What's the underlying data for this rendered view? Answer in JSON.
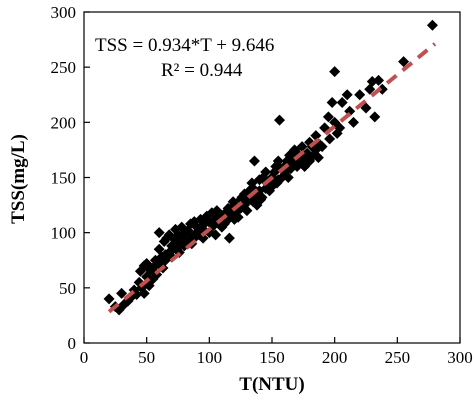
{
  "chart_data": {
    "type": "scatter",
    "xlabel": "T(NTU)",
    "ylabel": "TSS(mg/L)",
    "xlim": [
      0,
      300
    ],
    "ylim": [
      0,
      300
    ],
    "xticks": [
      "0",
      "50",
      "100",
      "150",
      "200",
      "250",
      "300"
    ],
    "yticks": [
      "0",
      "50",
      "100",
      "150",
      "200",
      "250",
      "300"
    ],
    "grid": false,
    "legend": "none",
    "annotations": {
      "equation": "TSS = 0.934*T + 9.646",
      "r_squared": "R² = 0.944"
    },
    "fit_line": {
      "slope": 0.934,
      "intercept": 9.646,
      "x_range": [
        20,
        280
      ],
      "style": "dashed",
      "color": "#c0504d"
    },
    "marker": {
      "shape": "diamond",
      "color": "#000000"
    },
    "series": [
      {
        "points": [
          [
            20,
            40
          ],
          [
            25,
            33
          ],
          [
            28,
            30
          ],
          [
            30,
            45
          ],
          [
            32,
            35
          ],
          [
            35,
            38
          ],
          [
            38,
            42
          ],
          [
            40,
            48
          ],
          [
            42,
            44
          ],
          [
            44,
            55
          ],
          [
            45,
            65
          ],
          [
            46,
            50
          ],
          [
            48,
            70
          ],
          [
            48,
            45
          ],
          [
            50,
            60
          ],
          [
            50,
            72
          ],
          [
            52,
            52
          ],
          [
            53,
            66
          ],
          [
            55,
            68
          ],
          [
            55,
            58
          ],
          [
            57,
            75
          ],
          [
            58,
            62
          ],
          [
            60,
            72
          ],
          [
            60,
            85
          ],
          [
            60,
            100
          ],
          [
            62,
            78
          ],
          [
            63,
            68
          ],
          [
            64,
            92
          ],
          [
            65,
            80
          ],
          [
            65,
            75
          ],
          [
            66,
            95
          ],
          [
            68,
            82
          ],
          [
            68,
            98
          ],
          [
            70,
            88
          ],
          [
            70,
            78
          ],
          [
            72,
            94
          ],
          [
            73,
            103
          ],
          [
            74,
            85
          ],
          [
            75,
            98
          ],
          [
            75,
            90
          ],
          [
            76,
            82
          ],
          [
            78,
            105
          ],
          [
            78,
            95
          ],
          [
            80,
            100
          ],
          [
            80,
            88
          ],
          [
            82,
            92
          ],
          [
            83,
            102
          ],
          [
            85,
            96
          ],
          [
            85,
            108
          ],
          [
            86,
            90
          ],
          [
            88,
            95
          ],
          [
            88,
            110
          ],
          [
            90,
            100
          ],
          [
            90,
            105
          ],
          [
            92,
            98
          ],
          [
            93,
            112
          ],
          [
            95,
            103
          ],
          [
            95,
            95
          ],
          [
            96,
            108
          ],
          [
            98,
            115
          ],
          [
            100,
            100
          ],
          [
            100,
            110
          ],
          [
            102,
            118
          ],
          [
            103,
            106
          ],
          [
            105,
            112
          ],
          [
            105,
            98
          ],
          [
            106,
            120
          ],
          [
            108,
            110
          ],
          [
            110,
            115
          ],
          [
            110,
            105
          ],
          [
            112,
            108
          ],
          [
            113,
            118
          ],
          [
            115,
            122
          ],
          [
            115,
            112
          ],
          [
            116,
            95
          ],
          [
            118,
            118
          ],
          [
            119,
            128
          ],
          [
            120,
            112
          ],
          [
            120,
            125
          ],
          [
            122,
            120
          ],
          [
            123,
            114
          ],
          [
            125,
            130
          ],
          [
            125,
            122
          ],
          [
            126,
            132
          ],
          [
            128,
            125
          ],
          [
            128,
            135
          ],
          [
            130,
            128
          ],
          [
            130,
            120
          ],
          [
            132,
            138
          ],
          [
            133,
            130
          ],
          [
            134,
            145
          ],
          [
            135,
            128
          ],
          [
            135,
            140
          ],
          [
            136,
            165
          ],
          [
            137,
            135
          ],
          [
            138,
            125
          ],
          [
            140,
            148
          ],
          [
            140,
            138
          ],
          [
            141,
            130
          ],
          [
            142,
            132
          ],
          [
            143,
            150
          ],
          [
            145,
            140
          ],
          [
            145,
            155
          ],
          [
            146,
            145
          ],
          [
            148,
            138
          ],
          [
            150,
            150
          ],
          [
            150,
            142
          ],
          [
            152,
            155
          ],
          [
            153,
            160
          ],
          [
            154,
            145
          ],
          [
            155,
            148
          ],
          [
            155,
            165
          ],
          [
            156,
            202
          ],
          [
            157,
            158
          ],
          [
            158,
            150
          ],
          [
            160,
            160
          ],
          [
            160,
            155
          ],
          [
            162,
            165
          ],
          [
            163,
            150
          ],
          [
            164,
            170
          ],
          [
            165,
            158
          ],
          [
            166,
            162
          ],
          [
            168,
            168
          ],
          [
            168,
            175
          ],
          [
            170,
            160
          ],
          [
            170,
            172
          ],
          [
            172,
            165
          ],
          [
            174,
            178
          ],
          [
            175,
            168
          ],
          [
            176,
            160
          ],
          [
            178,
            172
          ],
          [
            180,
            165
          ],
          [
            180,
            182
          ],
          [
            182,
            178
          ],
          [
            183,
            170
          ],
          [
            185,
            175
          ],
          [
            185,
            188
          ],
          [
            187,
            168
          ],
          [
            188,
            180
          ],
          [
            190,
            178
          ],
          [
            192,
            195
          ],
          [
            195,
            205
          ],
          [
            196,
            185
          ],
          [
            198,
            218
          ],
          [
            200,
            200
          ],
          [
            200,
            246
          ],
          [
            202,
            190
          ],
          [
            204,
            195
          ],
          [
            206,
            218
          ],
          [
            210,
            225
          ],
          [
            212,
            210
          ],
          [
            215,
            200
          ],
          [
            220,
            225
          ],
          [
            225,
            213
          ],
          [
            228,
            230
          ],
          [
            230,
            237
          ],
          [
            232,
            205
          ],
          [
            235,
            238
          ],
          [
            238,
            230
          ],
          [
            255,
            255
          ],
          [
            278,
            288
          ]
        ]
      }
    ]
  }
}
